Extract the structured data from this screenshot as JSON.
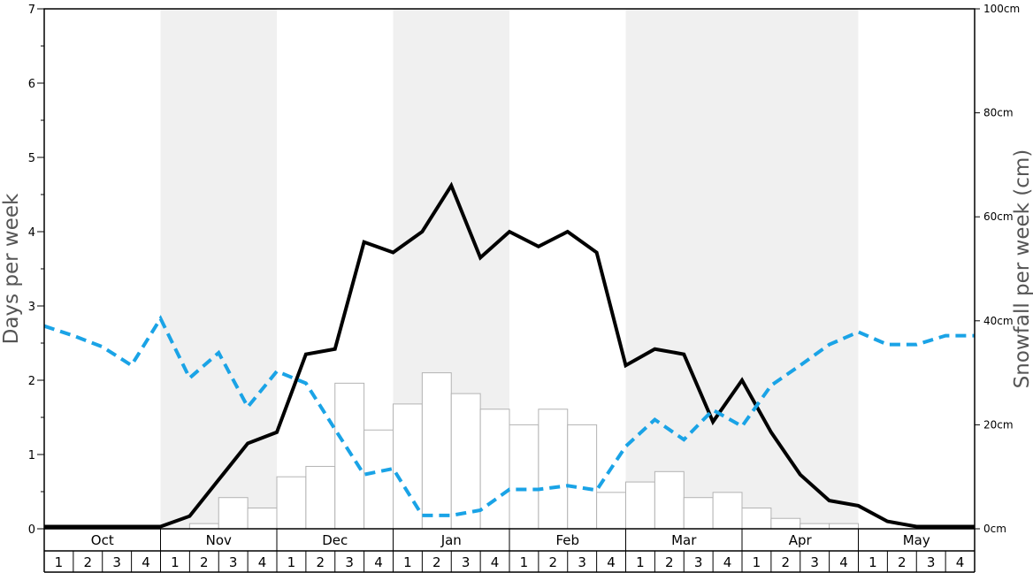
{
  "chart_data": {
    "type": "bar",
    "xlabel": "",
    "ylabel": "Days per week",
    "ylabel_right": "Snowfall per week (cm)",
    "ylim": [
      0,
      7
    ],
    "ylim_right": [
      0,
      100
    ],
    "left_ticks": [
      "0",
      "1",
      "2",
      "3",
      "4",
      "5",
      "6",
      "7"
    ],
    "right_ticks": [
      "0cm",
      "20cm",
      "40cm",
      "60cm",
      "80cm",
      "100cm"
    ],
    "months": [
      "Oct",
      "Nov",
      "Dec",
      "Jan",
      "Feb",
      "Mar",
      "Apr",
      "May"
    ],
    "week_labels": [
      "1",
      "2",
      "3",
      "4"
    ],
    "grid": false,
    "shaded_months": [
      "Nov",
      "Jan",
      "Mar",
      "Apr"
    ],
    "colors": {
      "bar_fill": "#ffffff",
      "bar_stroke": "#b3b3b3",
      "black_line": "#000000",
      "dashed_line": "#1aa3e6",
      "band": "#f0f0f0"
    },
    "series": [
      {
        "type": "bar",
        "axis": "right",
        "values": [
          0,
          0,
          0,
          0,
          0,
          1,
          6,
          4,
          10,
          12,
          28,
          19,
          24,
          30,
          26,
          23,
          20,
          23,
          20,
          7,
          9,
          11,
          6,
          7,
          4,
          2,
          1,
          1,
          0,
          0,
          0,
          0
        ]
      },
      {
        "type": "line",
        "style": "solid",
        "axis": "left",
        "values": [
          0.03,
          0.03,
          0.03,
          0.03,
          0.03,
          0.17,
          0.66,
          1.15,
          1.3,
          2.35,
          2.42,
          3.86,
          3.72,
          4.0,
          4.62,
          3.65,
          4.0,
          3.8,
          4.0,
          3.72,
          2.2,
          2.42,
          2.35,
          1.44,
          2.0,
          1.3,
          0.73,
          0.38,
          0.31,
          0.1,
          0.03,
          0.03,
          0.03
        ]
      },
      {
        "type": "line",
        "style": "dashed",
        "axis": "left",
        "values": [
          2.73,
          2.6,
          2.45,
          2.2,
          2.83,
          2.03,
          2.37,
          1.64,
          2.12,
          1.96,
          1.34,
          0.73,
          0.81,
          0.18,
          0.18,
          0.25,
          0.53,
          0.53,
          0.58,
          0.52,
          1.11,
          1.47,
          1.2,
          1.6,
          1.38,
          1.93,
          2.2,
          2.48,
          2.65,
          2.48,
          2.48,
          2.6,
          2.6
        ]
      }
    ]
  }
}
